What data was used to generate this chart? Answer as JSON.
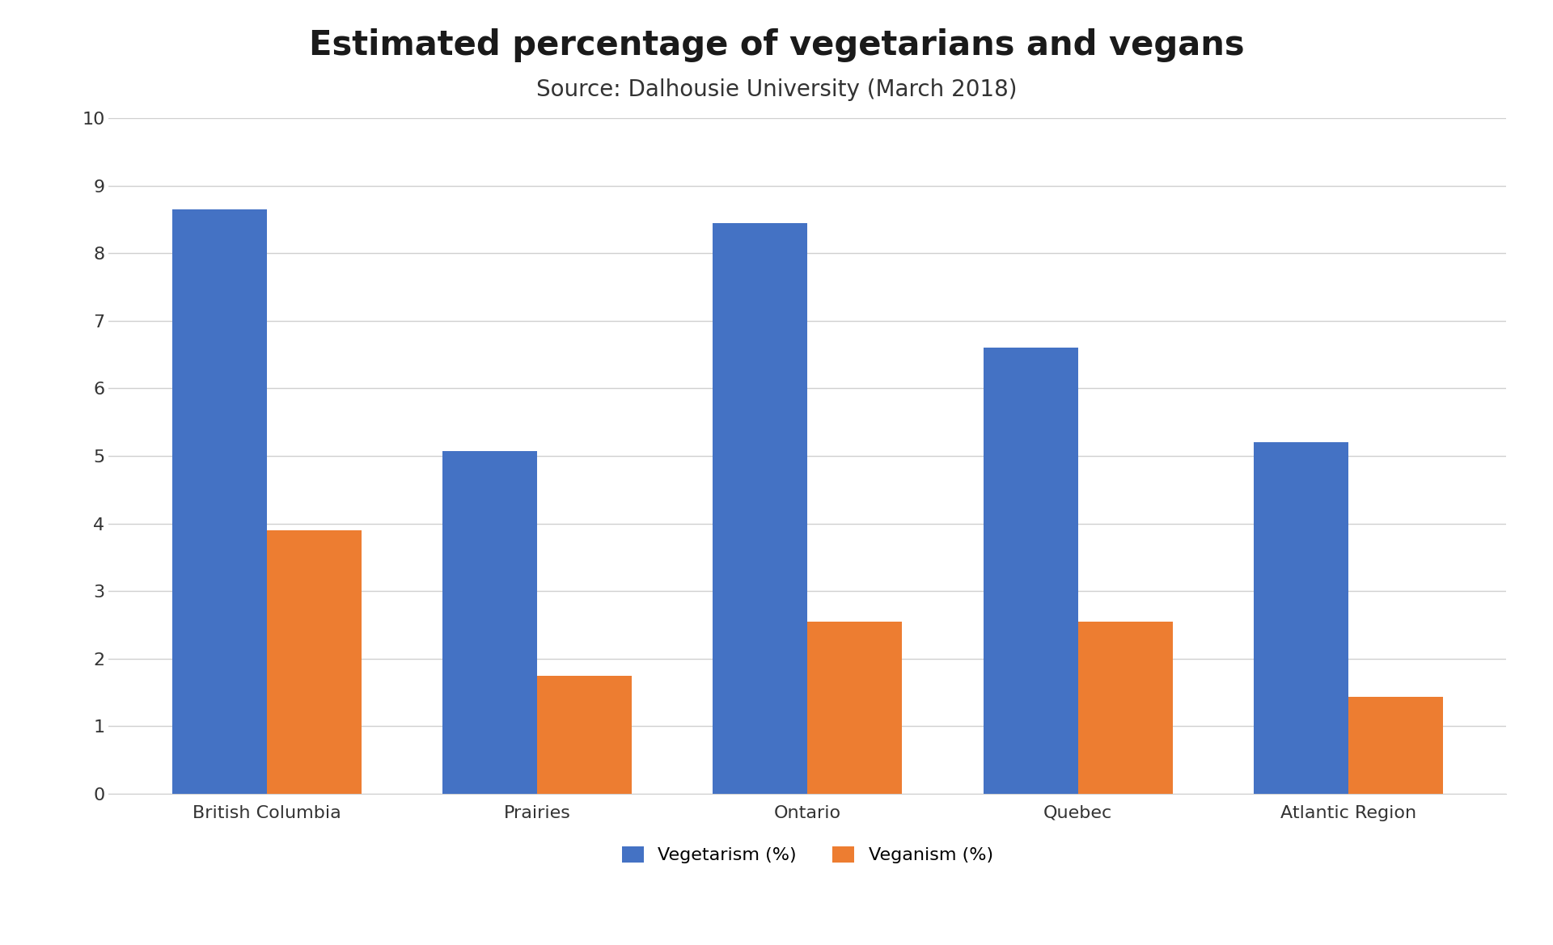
{
  "title": "Estimated percentage of vegetarians and vegans",
  "subtitle": "Source: Dalhousie University (March 2018)",
  "categories": [
    "British Columbia",
    "Prairies",
    "Ontario",
    "Quebec",
    "Atlantic Region"
  ],
  "vegetarism": [
    8.65,
    5.07,
    8.45,
    6.6,
    5.2
  ],
  "veganism": [
    3.9,
    1.75,
    2.55,
    2.55,
    1.43
  ],
  "bar_color_veg": "#4472C4",
  "bar_color_vegan": "#ED7D31",
  "legend_labels": [
    "Vegetarism (%)",
    "Veganism (%)"
  ],
  "ylim": [
    0,
    10
  ],
  "yticks": [
    0,
    1,
    2,
    3,
    4,
    5,
    6,
    7,
    8,
    9,
    10
  ],
  "background_color": "#ffffff",
  "title_fontsize": 30,
  "subtitle_fontsize": 20,
  "tick_fontsize": 16,
  "legend_fontsize": 16,
  "bar_width": 0.35,
  "grid_color": "#d0d0d0"
}
